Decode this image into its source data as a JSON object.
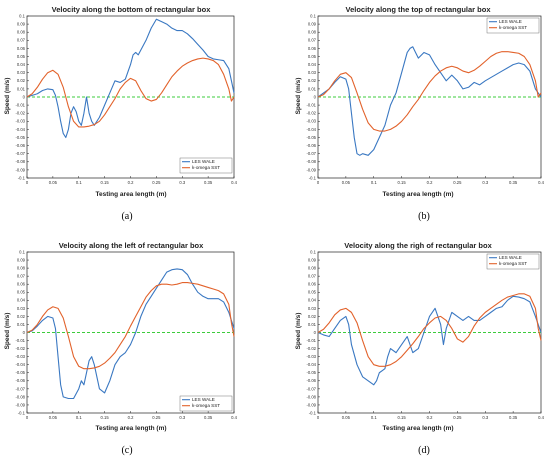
{
  "chart_data": [
    {
      "type": "line",
      "panel": "a",
      "caption": "(a)",
      "title": "Velocity along the bottom of rectangular box",
      "xlabel": "Testing area length (m)",
      "ylabel": "Speed (m/s)",
      "xlim": [
        0,
        0.4
      ],
      "ylim": [
        -0.1,
        0.1
      ],
      "xticks": [
        "0",
        "0.05",
        "0.1",
        "0.15",
        "0.2",
        "0.25",
        "0.3",
        "0.35",
        "0.4"
      ],
      "yticks": [
        "0.1",
        "0.09",
        "0.08",
        "0.07",
        "0.06",
        "0.05",
        "0.04",
        "0.03",
        "0.02",
        "0.01",
        "0",
        "-0.01",
        "-0.02",
        "-0.03",
        "-0.04",
        "-0.05",
        "-0.06",
        "-0.07",
        "-0.08",
        "-0.09",
        "-0.1"
      ],
      "legend": "bottom-right",
      "zero_line": true,
      "series": [
        {
          "name": "LES WALE",
          "color": "#3a78c2",
          "x": [
            0,
            0.01,
            0.02,
            0.03,
            0.04,
            0.05,
            0.055,
            0.06,
            0.065,
            0.07,
            0.075,
            0.08,
            0.085,
            0.09,
            0.095,
            0.1,
            0.105,
            0.11,
            0.115,
            0.12,
            0.125,
            0.13,
            0.14,
            0.15,
            0.16,
            0.17,
            0.18,
            0.19,
            0.2,
            0.205,
            0.21,
            0.215,
            0.22,
            0.23,
            0.24,
            0.25,
            0.26,
            0.27,
            0.28,
            0.29,
            0.3,
            0.31,
            0.32,
            0.33,
            0.34,
            0.35,
            0.36,
            0.37,
            0.38,
            0.39,
            0.395,
            0.4
          ],
          "y": [
            0,
            0.002,
            0.004,
            0.008,
            0.01,
            0.009,
            0.002,
            -0.012,
            -0.03,
            -0.045,
            -0.05,
            -0.04,
            -0.02,
            -0.012,
            -0.018,
            -0.03,
            -0.035,
            -0.02,
            0,
            -0.02,
            -0.03,
            -0.035,
            -0.025,
            -0.01,
            0.005,
            0.02,
            0.018,
            0.022,
            0.04,
            0.052,
            0.055,
            0.052,
            0.058,
            0.07,
            0.085,
            0.096,
            0.093,
            0.09,
            0.085,
            0.082,
            0.082,
            0.078,
            0.072,
            0.065,
            0.058,
            0.05,
            0.047,
            0.046,
            0.045,
            0.035,
            0.02,
            0.005
          ]
        },
        {
          "name": "k-omega SST",
          "color": "#e2622b",
          "x": [
            0,
            0.01,
            0.02,
            0.03,
            0.04,
            0.05,
            0.06,
            0.07,
            0.075,
            0.08,
            0.09,
            0.1,
            0.11,
            0.12,
            0.13,
            0.14,
            0.15,
            0.16,
            0.17,
            0.18,
            0.19,
            0.2,
            0.21,
            0.22,
            0.23,
            0.24,
            0.25,
            0.26,
            0.27,
            0.28,
            0.29,
            0.3,
            0.31,
            0.32,
            0.33,
            0.34,
            0.35,
            0.36,
            0.37,
            0.38,
            0.39,
            0.395,
            0.4
          ],
          "y": [
            0,
            0.004,
            0.012,
            0.022,
            0.03,
            0.033,
            0.028,
            0.012,
            0,
            -0.012,
            -0.03,
            -0.037,
            -0.037,
            -0.036,
            -0.034,
            -0.03,
            -0.022,
            -0.012,
            -0.002,
            0.01,
            0.018,
            0.023,
            0.02,
            0.008,
            -0.002,
            -0.005,
            -0.003,
            0.005,
            0.015,
            0.025,
            0.032,
            0.038,
            0.042,
            0.045,
            0.047,
            0.048,
            0.047,
            0.045,
            0.04,
            0.028,
            0.01,
            -0.005,
            0
          ]
        }
      ]
    },
    {
      "type": "line",
      "panel": "b",
      "caption": "(b)",
      "title": "Velocity along the top of rectangular box",
      "xlabel": "Testing area length (m)",
      "ylabel": "Speed (m/s)",
      "xlim": [
        0,
        0.4
      ],
      "ylim": [
        -0.1,
        0.1
      ],
      "xticks": [
        "0",
        "0.05",
        "0.1",
        "0.15",
        "0.2",
        "0.25",
        "0.3",
        "0.35",
        "0.4"
      ],
      "yticks": [
        "0.1",
        "0.09",
        "0.08",
        "0.07",
        "0.06",
        "0.05",
        "0.04",
        "0.03",
        "0.02",
        "0.01",
        "0",
        "-0.01",
        "-0.02",
        "-0.03",
        "-0.04",
        "-0.05",
        "-0.06",
        "-0.07",
        "-0.08",
        "-0.09",
        "-0.1"
      ],
      "legend": "top-right",
      "zero_line": true,
      "series": [
        {
          "name": "LES WALE",
          "color": "#3a78c2",
          "x": [
            0,
            0.01,
            0.02,
            0.03,
            0.04,
            0.05,
            0.055,
            0.06,
            0.065,
            0.07,
            0.075,
            0.08,
            0.09,
            0.1,
            0.11,
            0.12,
            0.13,
            0.14,
            0.15,
            0.16,
            0.165,
            0.17,
            0.175,
            0.18,
            0.19,
            0.2,
            0.21,
            0.22,
            0.23,
            0.24,
            0.25,
            0.26,
            0.27,
            0.28,
            0.29,
            0.3,
            0.31,
            0.32,
            0.33,
            0.34,
            0.35,
            0.36,
            0.37,
            0.38,
            0.39,
            0.4
          ],
          "y": [
            0,
            0.005,
            0.01,
            0.018,
            0.025,
            0.022,
            0.01,
            -0.02,
            -0.05,
            -0.07,
            -0.072,
            -0.07,
            -0.072,
            -0.065,
            -0.05,
            -0.035,
            -0.01,
            0.005,
            0.03,
            0.055,
            0.06,
            0.062,
            0.055,
            0.048,
            0.055,
            0.052,
            0.04,
            0.03,
            0.02,
            0.027,
            0.02,
            0.01,
            0.012,
            0.018,
            0.015,
            0.02,
            0.024,
            0.028,
            0.032,
            0.036,
            0.04,
            0.042,
            0.04,
            0.032,
            0.01,
            0
          ]
        },
        {
          "name": "k-omega SST",
          "color": "#e2622b",
          "x": [
            0,
            0.01,
            0.02,
            0.03,
            0.04,
            0.05,
            0.06,
            0.07,
            0.08,
            0.09,
            0.1,
            0.11,
            0.12,
            0.13,
            0.14,
            0.15,
            0.16,
            0.17,
            0.18,
            0.19,
            0.2,
            0.21,
            0.22,
            0.23,
            0.24,
            0.25,
            0.26,
            0.27,
            0.28,
            0.29,
            0.3,
            0.31,
            0.32,
            0.33,
            0.34,
            0.35,
            0.36,
            0.37,
            0.38,
            0.39,
            0.395,
            0.4
          ],
          "y": [
            0,
            0.003,
            0.01,
            0.02,
            0.028,
            0.03,
            0.024,
            0.005,
            -0.015,
            -0.032,
            -0.04,
            -0.042,
            -0.042,
            -0.04,
            -0.036,
            -0.03,
            -0.022,
            -0.012,
            -0.003,
            0.008,
            0.018,
            0.026,
            0.032,
            0.036,
            0.038,
            0.036,
            0.032,
            0.03,
            0.033,
            0.038,
            0.044,
            0.05,
            0.054,
            0.056,
            0.056,
            0.055,
            0.054,
            0.05,
            0.04,
            0.02,
            0,
            0.005
          ]
        }
      ]
    },
    {
      "type": "line",
      "panel": "c",
      "caption": "(c)",
      "title": "Velocity along the left of rectangular box",
      "xlabel": "Testing area length (m)",
      "ylabel": "Speed (m/s)",
      "xlim": [
        0,
        0.4
      ],
      "ylim": [
        -0.1,
        0.1
      ],
      "xticks": [
        "0",
        "0.05",
        "0.1",
        "0.15",
        "0.2",
        "0.25",
        "0.3",
        "0.35",
        "0.4"
      ],
      "yticks": [
        "0.1",
        "0.09",
        "0.08",
        "0.07",
        "0.06",
        "0.05",
        "0.04",
        "0.03",
        "0.02",
        "0.01",
        "0",
        "-0.01",
        "-0.02",
        "-0.03",
        "-0.04",
        "-0.05",
        "-0.06",
        "-0.07",
        "-0.08",
        "-0.09",
        "-0.1"
      ],
      "legend": "bottom-right",
      "zero_line": true,
      "series": [
        {
          "name": "LES WALE",
          "color": "#3a78c2",
          "x": [
            0,
            0.01,
            0.02,
            0.03,
            0.04,
            0.05,
            0.055,
            0.06,
            0.065,
            0.07,
            0.08,
            0.09,
            0.1,
            0.105,
            0.11,
            0.115,
            0.12,
            0.125,
            0.13,
            0.14,
            0.15,
            0.16,
            0.17,
            0.18,
            0.19,
            0.2,
            0.21,
            0.22,
            0.23,
            0.24,
            0.25,
            0.26,
            0.27,
            0.28,
            0.29,
            0.3,
            0.31,
            0.32,
            0.33,
            0.34,
            0.35,
            0.36,
            0.37,
            0.38,
            0.39,
            0.4
          ],
          "y": [
            0,
            0.002,
            0.008,
            0.015,
            0.02,
            0.018,
            0.005,
            -0.03,
            -0.065,
            -0.08,
            -0.082,
            -0.082,
            -0.07,
            -0.06,
            -0.065,
            -0.05,
            -0.035,
            -0.03,
            -0.04,
            -0.07,
            -0.075,
            -0.06,
            -0.04,
            -0.03,
            -0.025,
            -0.015,
            0,
            0.02,
            0.035,
            0.045,
            0.055,
            0.065,
            0.075,
            0.078,
            0.079,
            0.078,
            0.072,
            0.06,
            0.05,
            0.045,
            0.042,
            0.042,
            0.042,
            0.038,
            0.025,
            0.005
          ]
        },
        {
          "name": "k-omega SST",
          "color": "#e2622b",
          "x": [
            0,
            0.01,
            0.02,
            0.03,
            0.04,
            0.05,
            0.06,
            0.07,
            0.08,
            0.09,
            0.1,
            0.11,
            0.12,
            0.13,
            0.14,
            0.15,
            0.16,
            0.17,
            0.18,
            0.19,
            0.2,
            0.21,
            0.22,
            0.23,
            0.24,
            0.25,
            0.26,
            0.27,
            0.28,
            0.29,
            0.3,
            0.31,
            0.32,
            0.33,
            0.34,
            0.35,
            0.36,
            0.37,
            0.38,
            0.39,
            0.395,
            0.4
          ],
          "y": [
            0,
            0.003,
            0.01,
            0.02,
            0.028,
            0.032,
            0.03,
            0.018,
            -0.005,
            -0.03,
            -0.042,
            -0.045,
            -0.045,
            -0.044,
            -0.042,
            -0.038,
            -0.032,
            -0.025,
            -0.015,
            -0.005,
            0.008,
            0.02,
            0.032,
            0.044,
            0.052,
            0.058,
            0.06,
            0.06,
            0.059,
            0.06,
            0.062,
            0.062,
            0.061,
            0.06,
            0.058,
            0.056,
            0.054,
            0.052,
            0.048,
            0.035,
            0.012,
            -0.005
          ]
        }
      ]
    },
    {
      "type": "line",
      "panel": "d",
      "caption": "(d)",
      "title": "Velocity along the righ of rectangular box",
      "xlabel": "Testing area length (m)",
      "ylabel": "Speed (m/s)",
      "xlim": [
        0,
        0.4
      ],
      "ylim": [
        -0.1,
        0.1
      ],
      "xticks": [
        "0",
        "0.05",
        "0.1",
        "0.15",
        "0.2",
        "0.25",
        "0.3",
        "0.35",
        "0.4"
      ],
      "yticks": [
        "0.1",
        "0.09",
        "0.08",
        "0.07",
        "0.06",
        "0.05",
        "0.04",
        "0.03",
        "0.02",
        "0.01",
        "0",
        "-0.01",
        "-0.02",
        "-0.03",
        "-0.04",
        "-0.05",
        "-0.06",
        "-0.07",
        "-0.08",
        "-0.09",
        "-0.1"
      ],
      "legend": "top-right",
      "zero_line": true,
      "series": [
        {
          "name": "LES WALE",
          "color": "#3a78c2",
          "x": [
            0,
            0.01,
            0.02,
            0.03,
            0.04,
            0.05,
            0.055,
            0.06,
            0.07,
            0.08,
            0.09,
            0.1,
            0.105,
            0.11,
            0.12,
            0.125,
            0.13,
            0.14,
            0.15,
            0.16,
            0.17,
            0.18,
            0.19,
            0.2,
            0.21,
            0.22,
            0.225,
            0.23,
            0.24,
            0.25,
            0.26,
            0.27,
            0.28,
            0.29,
            0.3,
            0.31,
            0.32,
            0.33,
            0.34,
            0.35,
            0.36,
            0.37,
            0.38,
            0.39,
            0.4
          ],
          "y": [
            0,
            -0.003,
            -0.005,
            0.005,
            0.015,
            0.02,
            0.01,
            -0.015,
            -0.04,
            -0.055,
            -0.06,
            -0.065,
            -0.06,
            -0.05,
            -0.045,
            -0.03,
            -0.02,
            -0.025,
            -0.015,
            -0.005,
            -0.025,
            -0.02,
            0,
            0.02,
            0.03,
            0.01,
            -0.015,
            0.005,
            0.025,
            0.02,
            0.015,
            0.02,
            0.015,
            0.015,
            0.02,
            0.025,
            0.03,
            0.032,
            0.04,
            0.045,
            0.044,
            0.042,
            0.038,
            0.02,
            0
          ]
        },
        {
          "name": "k-omega SST",
          "color": "#e2622b",
          "x": [
            0,
            0.01,
            0.02,
            0.03,
            0.04,
            0.05,
            0.06,
            0.07,
            0.08,
            0.09,
            0.1,
            0.11,
            0.12,
            0.13,
            0.14,
            0.15,
            0.16,
            0.17,
            0.18,
            0.19,
            0.2,
            0.21,
            0.22,
            0.23,
            0.24,
            0.25,
            0.26,
            0.27,
            0.28,
            0.29,
            0.3,
            0.31,
            0.32,
            0.33,
            0.34,
            0.35,
            0.36,
            0.37,
            0.38,
            0.39,
            0.395,
            0.4
          ],
          "y": [
            0,
            0.004,
            0.012,
            0.022,
            0.028,
            0.03,
            0.025,
            0.012,
            -0.01,
            -0.03,
            -0.04,
            -0.042,
            -0.042,
            -0.04,
            -0.036,
            -0.03,
            -0.022,
            -0.014,
            -0.005,
            0.005,
            0.012,
            0.018,
            0.02,
            0.015,
            0.005,
            -0.008,
            -0.012,
            -0.005,
            0.008,
            0.018,
            0.025,
            0.03,
            0.035,
            0.04,
            0.044,
            0.046,
            0.048,
            0.048,
            0.045,
            0.03,
            0.005,
            -0.01
          ]
        }
      ]
    }
  ]
}
